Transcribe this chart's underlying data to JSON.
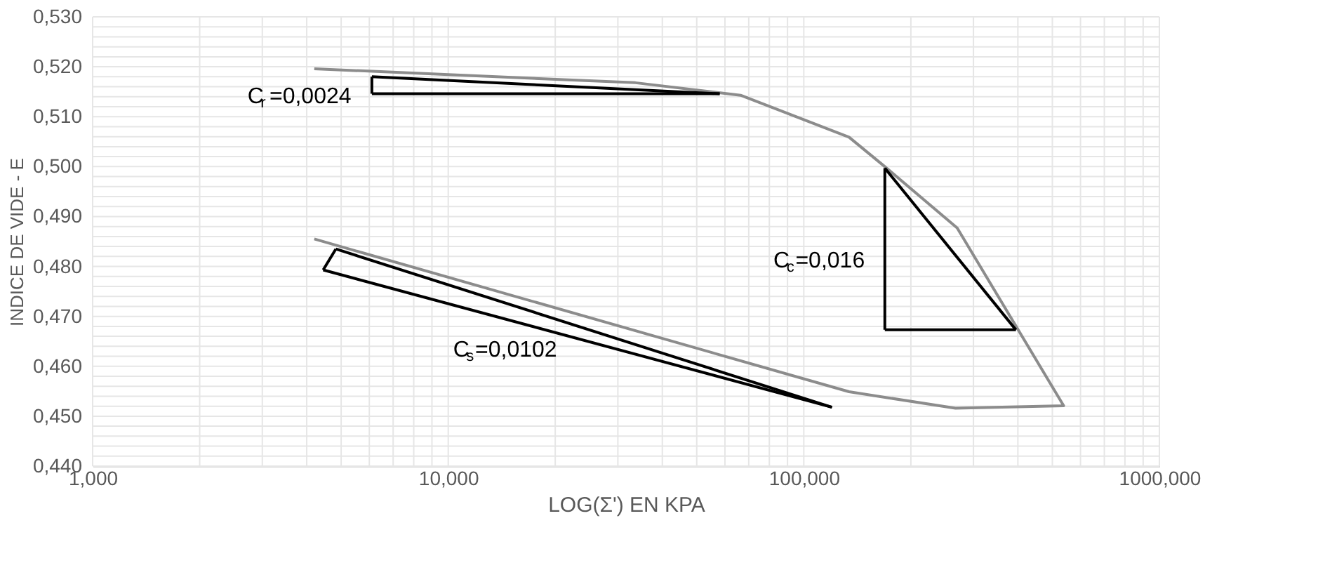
{
  "chart_data": {
    "type": "line",
    "xlabel": "LOG(Σ') EN KPA",
    "ylabel": "INDICE DE VIDE - E",
    "log": "x",
    "grid": true,
    "legend": false,
    "marker": "none",
    "line_style": "solid",
    "xlim": [
      1,
      1000
    ],
    "ylim": [
      0.44,
      0.53
    ],
    "xticks": [
      {
        "value": 1,
        "label": "1,000"
      },
      {
        "value": 2,
        "label": null
      },
      {
        "value": 3,
        "label": null
      },
      {
        "value": 4,
        "label": null
      },
      {
        "value": 5,
        "label": null
      },
      {
        "value": 6,
        "label": null
      },
      {
        "value": 7,
        "label": null
      },
      {
        "value": 8,
        "label": null
      },
      {
        "value": 9,
        "label": null
      },
      {
        "value": 10,
        "label": "10,000"
      },
      {
        "value": 20,
        "label": null
      },
      {
        "value": 30,
        "label": null
      },
      {
        "value": 40,
        "label": null
      },
      {
        "value": 50,
        "label": null
      },
      {
        "value": 60,
        "label": null
      },
      {
        "value": 70,
        "label": null
      },
      {
        "value": 80,
        "label": null
      },
      {
        "value": 90,
        "label": null
      },
      {
        "value": 100,
        "label": "100,000"
      },
      {
        "value": 200,
        "label": null
      },
      {
        "value": 300,
        "label": null
      },
      {
        "value": 400,
        "label": null
      },
      {
        "value": 500,
        "label": null
      },
      {
        "value": 600,
        "label": null
      },
      {
        "value": 700,
        "label": null
      },
      {
        "value": 800,
        "label": null
      },
      {
        "value": 900,
        "label": null
      },
      {
        "value": 1000,
        "label": "1000,000"
      }
    ],
    "yticks": [
      {
        "value": 0.44,
        "label": "0,440"
      },
      {
        "value": 0.442,
        "label": null
      },
      {
        "value": 0.444,
        "label": null
      },
      {
        "value": 0.446,
        "label": null
      },
      {
        "value": 0.448,
        "label": null
      },
      {
        "value": 0.45,
        "label": "0,450"
      },
      {
        "value": 0.452,
        "label": null
      },
      {
        "value": 0.454,
        "label": null
      },
      {
        "value": 0.456,
        "label": null
      },
      {
        "value": 0.458,
        "label": null
      },
      {
        "value": 0.46,
        "label": "0,460"
      },
      {
        "value": 0.462,
        "label": null
      },
      {
        "value": 0.464,
        "label": null
      },
      {
        "value": 0.466,
        "label": null
      },
      {
        "value": 0.468,
        "label": null
      },
      {
        "value": 0.47,
        "label": "0,470"
      },
      {
        "value": 0.472,
        "label": null
      },
      {
        "value": 0.474,
        "label": null
      },
      {
        "value": 0.476,
        "label": null
      },
      {
        "value": 0.478,
        "label": null
      },
      {
        "value": 0.48,
        "label": "0,480"
      },
      {
        "value": 0.482,
        "label": null
      },
      {
        "value": 0.484,
        "label": null
      },
      {
        "value": 0.486,
        "label": null
      },
      {
        "value": 0.488,
        "label": null
      },
      {
        "value": 0.49,
        "label": "0,490"
      },
      {
        "value": 0.492,
        "label": null
      },
      {
        "value": 0.494,
        "label": null
      },
      {
        "value": 0.496,
        "label": null
      },
      {
        "value": 0.498,
        "label": null
      },
      {
        "value": 0.5,
        "label": "0,500"
      },
      {
        "value": 0.502,
        "label": null
      },
      {
        "value": 0.504,
        "label": null
      },
      {
        "value": 0.506,
        "label": null
      },
      {
        "value": 0.508,
        "label": null
      },
      {
        "value": 0.51,
        "label": "0,510"
      },
      {
        "value": 0.512,
        "label": null
      },
      {
        "value": 0.514,
        "label": null
      },
      {
        "value": 0.516,
        "label": null
      },
      {
        "value": 0.518,
        "label": null
      },
      {
        "value": 0.52,
        "label": "0,520"
      },
      {
        "value": 0.522,
        "label": null
      },
      {
        "value": 0.524,
        "label": null
      },
      {
        "value": 0.526,
        "label": null
      },
      {
        "value": 0.528,
        "label": null
      },
      {
        "value": 0.53,
        "label": "0,530"
      }
    ],
    "series": [
      {
        "color": "#8c8c8c",
        "x": [
          4.2,
          33.6,
          66.4,
          134,
          169,
          270,
          538,
          267,
          134,
          4.2
        ],
        "values": [
          0.5196,
          0.5168,
          0.5143,
          0.5059,
          0.5,
          0.4877,
          0.4521,
          0.4516,
          0.4549,
          0.4855
        ]
      },
      {
        "name": "C$_{r}$=0,0024",
        "color": "#000000",
        "x": [
          6.1,
          6.1
        ],
        "values": [
          0.518,
          0.5146
        ]
      },
      {
        "color": "#000000",
        "x": [
          6.1,
          58
        ],
        "values": [
          0.5146,
          0.5146
        ]
      },
      {
        "color": "#000000",
        "x": [
          6.1,
          58
        ],
        "values": [
          0.518,
          0.5146
        ]
      },
      {
        "name": "C$_{c}$=0,016",
        "color": "#000000",
        "x": [
          169,
          169
        ],
        "values": [
          0.4997,
          0.4673
        ]
      },
      {
        "color": "#000000",
        "x": [
          169,
          395
        ],
        "values": [
          0.4673,
          0.4673
        ]
      },
      {
        "color": "#000000",
        "x": [
          169,
          395
        ],
        "values": [
          0.4997,
          0.4673
        ]
      },
      {
        "name": "C$_{s}$=0,0102",
        "color": "#000000",
        "x": [
          4.45,
          120
        ],
        "values": [
          0.4793,
          0.4518
        ]
      },
      {
        "color": "#000000",
        "x": [
          4.83,
          120
        ],
        "values": [
          0.4835,
          0.4518
        ]
      },
      {
        "color": "#000000",
        "x": [
          4.45,
          4.83
        ],
        "values": [
          0.4793,
          0.4835
        ]
      }
    ]
  }
}
